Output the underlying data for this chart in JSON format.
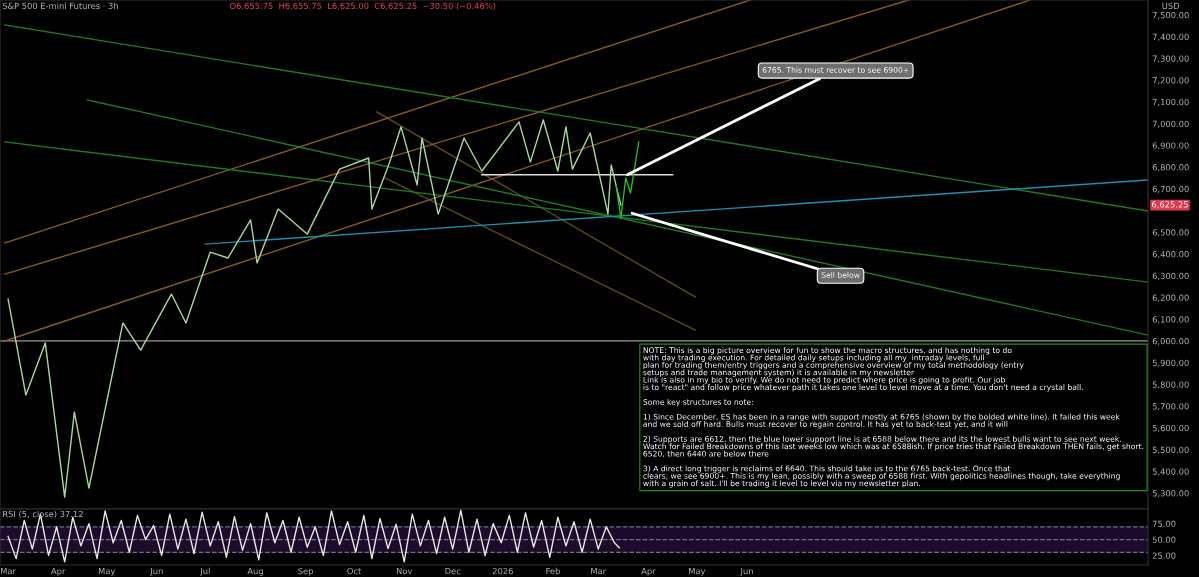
{
  "chart_data": [
    {
      "type": "line",
      "title": "S&P 500 E-mini Futures · 3h",
      "subtitle": "O6,655.75  H6,655.75  L6,625.00  C6,625.25  −30.50 (−0.46%)",
      "ylabel": "USD",
      "tick_labels": "y",
      "xlim": [
        "2025-02-24",
        "2027-02-04"
      ],
      "ylim": [
        5227,
        7569
      ],
      "yticks": [
        {
          "value": 5300,
          "label": "5,300.00"
        },
        {
          "value": 5400,
          "label": "5,400.00"
        },
        {
          "value": 5500,
          "label": "5,500.00"
        },
        {
          "value": 5600,
          "label": "5,600.00"
        },
        {
          "value": 5700,
          "label": "5,700.00"
        },
        {
          "value": 5800,
          "label": "5,800.00"
        },
        {
          "value": 5900,
          "label": "5,900.00"
        },
        {
          "value": 6000,
          "label": "6,000.00"
        },
        {
          "value": 6100,
          "label": "6,100.00"
        },
        {
          "value": 6200,
          "label": "6,200.00"
        },
        {
          "value": 6300,
          "label": "6,300.00"
        },
        {
          "value": 6400,
          "label": "6,400.00"
        },
        {
          "value": 6500,
          "label": "6,500.00"
        },
        {
          "value": 6700,
          "label": "6,700.00"
        },
        {
          "value": 6800,
          "label": "6,800.00"
        },
        {
          "value": 6900,
          "label": "6,900.00"
        },
        {
          "value": 7000,
          "label": "7,000.00"
        },
        {
          "value": 7100,
          "label": "7,100.00"
        },
        {
          "value": 7200,
          "label": "7,200.00"
        },
        {
          "value": 7300,
          "label": "7,300.00"
        },
        {
          "value": 7400,
          "label": "7,400.00"
        },
        {
          "value": 7500,
          "label": "7,500.00"
        }
      ],
      "ref_lines": [
        {
          "axis": "y",
          "value": 6000,
          "color": "#9a9a9a",
          "line_style": "solid"
        }
      ],
      "series": [
        {
          "type": "line",
          "color": "#5a4a1a",
          "x": [
            "2025-10-15",
            "2026-04-30"
          ],
          "values": [
            7054,
            6202
          ]
        },
        {
          "type": "line",
          "color": "#5a4a1a",
          "x": [
            "2025-10-20",
            "2026-04-30"
          ],
          "values": [
            6750,
            6050
          ]
        },
        {
          "type": "line",
          "color": "#8a5a1e",
          "x": [
            "2025-02-27",
            "2026-06-03"
          ],
          "values": [
            6451,
            7569
          ]
        },
        {
          "type": "line",
          "color": "#8a5a1e",
          "x": [
            "2025-02-27",
            "2026-09-09"
          ],
          "values": [
            6308,
            7569
          ]
        },
        {
          "type": "line",
          "color": "#8a5a1e",
          "x": [
            "2025-02-27",
            "2026-11-23"
          ],
          "values": [
            6000,
            7569
          ]
        },
        {
          "type": "line",
          "color": "#1f7a1f",
          "x": [
            "2025-02-27",
            "2027-02-04"
          ],
          "values": [
            7454,
            6598
          ]
        },
        {
          "type": "line",
          "color": "#1f7a1f",
          "x": [
            "2025-02-27",
            "2027-02-04"
          ],
          "values": [
            6916,
            6271
          ]
        },
        {
          "type": "line",
          "color": "#1f7a1f",
          "x": [
            "2025-04-19",
            "2027-02-04"
          ],
          "values": [
            7109,
            6027
          ]
        },
        {
          "type": "line",
          "color": "#1e8fb0",
          "x": [
            "2025-07-01",
            "2027-02-04"
          ],
          "values": [
            6446,
            6741
          ]
        },
        {
          "type": "line",
          "color": "#e0e0e0",
          "x": [
            "2025-12-19",
            "2026-04-16"
          ],
          "values": [
            6765,
            6765
          ]
        },
        {
          "type": "line",
          "color": "#a8d89a",
          "x": [
            "2025-03-01",
            "2025-03-12",
            "2025-03-24",
            "2025-04-05",
            "2025-04-11",
            "2025-04-20",
            "2025-05-11",
            "2025-05-22",
            "2025-06-10",
            "2025-06-19",
            "2025-07-04",
            "2025-07-15",
            "2025-07-29",
            "2025-08-02",
            "2025-08-15",
            "2025-09-02",
            "2025-09-22",
            "2025-10-10",
            "2025-10-12",
            "2025-10-23",
            "2025-10-30",
            "2025-11-09",
            "2025-11-12",
            "2025-11-22",
            "2025-12-08",
            "2025-12-19",
            "2026-01-11",
            "2026-01-18",
            "2026-01-26",
            "2026-02-04",
            "2026-02-09",
            "2026-02-13",
            "2026-02-24",
            "2026-03-07",
            "2026-03-09",
            "2026-03-13",
            "2026-03-15"
          ],
          "values": [
            6193,
            5751,
            5991,
            5282,
            5673,
            5323,
            6083,
            5958,
            6216,
            6083,
            6409,
            6382,
            6557,
            6359,
            6607,
            6492,
            6791,
            6842,
            6607,
            6823,
            6985,
            6718,
            6934,
            6584,
            6934,
            6782,
            7008,
            6823,
            7017,
            6782,
            6985,
            6791,
            6957,
            6584,
            6810,
            6685,
            6625.25
          ]
        },
        {
          "type": "line",
          "color": "#22c022",
          "x": [
            "2026-03-12",
            "2026-03-15",
            "2026-03-18",
            "2026-03-21",
            "2026-03-26"
          ],
          "values": [
            6718,
            6566,
            6750,
            6681,
            6916
          ]
        }
      ],
      "annotations": [
        {
          "text": "6765. This must recover to see 6900+",
          "x": "2026-03-19",
          "y": 6765
        },
        {
          "text": "Sell below",
          "x": "2026-03-22",
          "y": 6588
        },
        {
          "text": "6,625.25",
          "x": "2027-02-04",
          "y": 6625.25
        },
        "NOTE: This is a big picture overview for fun to show the macro structures, and has nothing to do\nwith day trading execution. For detailed daily setups including all my  intraday levels, full\nplan for trading them/entry triggers and a comprehensive overview of my total methodology (entry\nsetups and trade management system) it is available in my newsletter\nLink is also in my bio to verify. We do not need to predict where price is going to profit. Our job\nis to \"react\" and follow price whatever path it takes one level to level move at a time. You don't need a crystal ball.\n\nSome key structures to note:\n\n1) Since December, ES has been in a range with support mostly at 6765 (shown by the bolded white line). It failed this week\nand we sold off hard. Bulls must recover to regain control. It has yet to back-test yet, and it will\n\n2) Supports are 6612, then the blue lower support line is at 6588 below there and its the lowest bulls want to see next week.\nWatch for Failed Breakdowns of this last weeks low which was at 6588ish. If price tries that Failed Breakdown THEN fails, get short.\n6520, then 6440 are below there\n\n3) A direct long trigger is reclaims of 6640. This should take us to the 6765 back-test. Once that\nclears, we see 6900+. This is my lean, possibly with a sweep of 6588 first. With gepolitics headlines though, take everything\nwith a grain of salt. I'll be trading it level to level via my newsletter plan."
      ]
    },
    {
      "type": "line",
      "title": "RSI (5, close) 37.12",
      "xlim": [
        "2025-02-24",
        "2027-02-04"
      ],
      "ylim": [
        10,
        98
      ],
      "yticks": [
        {
          "value": 25,
          "label": "25.00"
        },
        {
          "value": 50,
          "label": "50.00"
        },
        {
          "value": 75,
          "label": "75.00"
        }
      ],
      "xticks": [
        {
          "value": "2025-03-01",
          "label": "Mar"
        },
        {
          "value": "2025-04-01",
          "label": "Apr"
        },
        {
          "value": "2025-05-01",
          "label": "May"
        },
        {
          "value": "2025-06-01",
          "label": "Jun"
        },
        {
          "value": "2025-07-01",
          "label": "Jul"
        },
        {
          "value": "2025-08-01",
          "label": "Aug"
        },
        {
          "value": "2025-09-01",
          "label": "Sep"
        },
        {
          "value": "2025-10-01",
          "label": "Oct"
        },
        {
          "value": "2025-11-01",
          "label": "Nov"
        },
        {
          "value": "2025-12-01",
          "label": "Dec"
        },
        {
          "value": "2026-01-01",
          "label": "2026"
        },
        {
          "value": "2026-02-01",
          "label": "Feb"
        },
        {
          "value": "2026-03-01",
          "label": "Mar"
        },
        {
          "value": "2026-04-01",
          "label": "Apr"
        },
        {
          "value": "2026-05-01",
          "label": "May"
        },
        {
          "value": "2026-06-01",
          "label": "Jun"
        }
      ],
      "bands": [
        {
          "axis": "y",
          "from": 30,
          "to": 70,
          "color": "#1c0b2a"
        }
      ],
      "ref_lines": [
        {
          "axis": "y",
          "value": 70,
          "color": "#7a6a8a",
          "line_style": "dashed"
        },
        {
          "axis": "y",
          "value": 50,
          "color": "#7a6a8a",
          "line_style": "dashed"
        },
        {
          "axis": "y",
          "value": 30,
          "color": "#7a6a8a",
          "line_style": "dashed"
        }
      ],
      "series": [
        {
          "color": "#e8e8e8",
          "x": [
            "2025-03-01",
            "2025-03-06",
            "2025-03-11",
            "2025-03-16",
            "2025-03-21",
            "2025-03-26",
            "2025-03-31",
            "2025-04-05",
            "2025-04-10",
            "2025-04-15",
            "2025-04-20",
            "2025-04-25",
            "2025-04-30",
            "2025-05-05",
            "2025-05-10",
            "2025-05-15",
            "2025-05-20",
            "2025-05-25",
            "2025-05-30",
            "2025-06-04",
            "2025-06-09",
            "2025-06-14",
            "2025-06-19",
            "2025-06-24",
            "2025-06-29",
            "2025-07-04",
            "2025-07-09",
            "2025-07-14",
            "2025-07-19",
            "2025-07-24",
            "2025-07-29",
            "2025-08-03",
            "2025-08-08",
            "2025-08-13",
            "2025-08-18",
            "2025-08-23",
            "2025-08-28",
            "2025-09-02",
            "2025-09-07",
            "2025-09-12",
            "2025-09-17",
            "2025-09-22",
            "2025-09-27",
            "2025-10-02",
            "2025-10-07",
            "2025-10-12",
            "2025-10-17",
            "2025-10-22",
            "2025-10-27",
            "2025-11-01",
            "2025-11-06",
            "2025-11-11",
            "2025-11-16",
            "2025-11-21",
            "2025-11-26",
            "2025-12-01",
            "2025-12-06",
            "2025-12-11",
            "2025-12-16",
            "2025-12-21",
            "2025-12-26",
            "2025-12-31",
            "2026-01-05",
            "2026-01-10",
            "2026-01-15",
            "2026-01-20",
            "2026-01-25",
            "2026-01-30",
            "2026-02-04",
            "2026-02-09",
            "2026-02-14",
            "2026-02-19",
            "2026-02-24",
            "2026-03-01",
            "2026-03-06",
            "2026-03-11",
            "2026-03-14"
          ],
          "values": [
            55,
            20,
            80,
            35,
            90,
            25,
            70,
            15,
            85,
            40,
            75,
            20,
            95,
            45,
            80,
            30,
            88,
            50,
            72,
            25,
            90,
            35,
            82,
            28,
            93,
            40,
            78,
            22,
            86,
            33,
            75,
            18,
            92,
            45,
            80,
            30,
            85,
            38,
            70,
            25,
            95,
            42,
            78,
            30,
            88,
            20,
            83,
            36,
            74,
            15,
            90,
            40,
            80,
            28,
            85,
            35,
            96,
            30,
            82,
            25,
            75,
            45,
            88,
            30,
            92,
            38,
            80,
            22,
            85,
            40,
            78,
            30,
            82,
            35,
            70,
            45,
            37.12
          ]
        }
      ]
    }
  ]
}
